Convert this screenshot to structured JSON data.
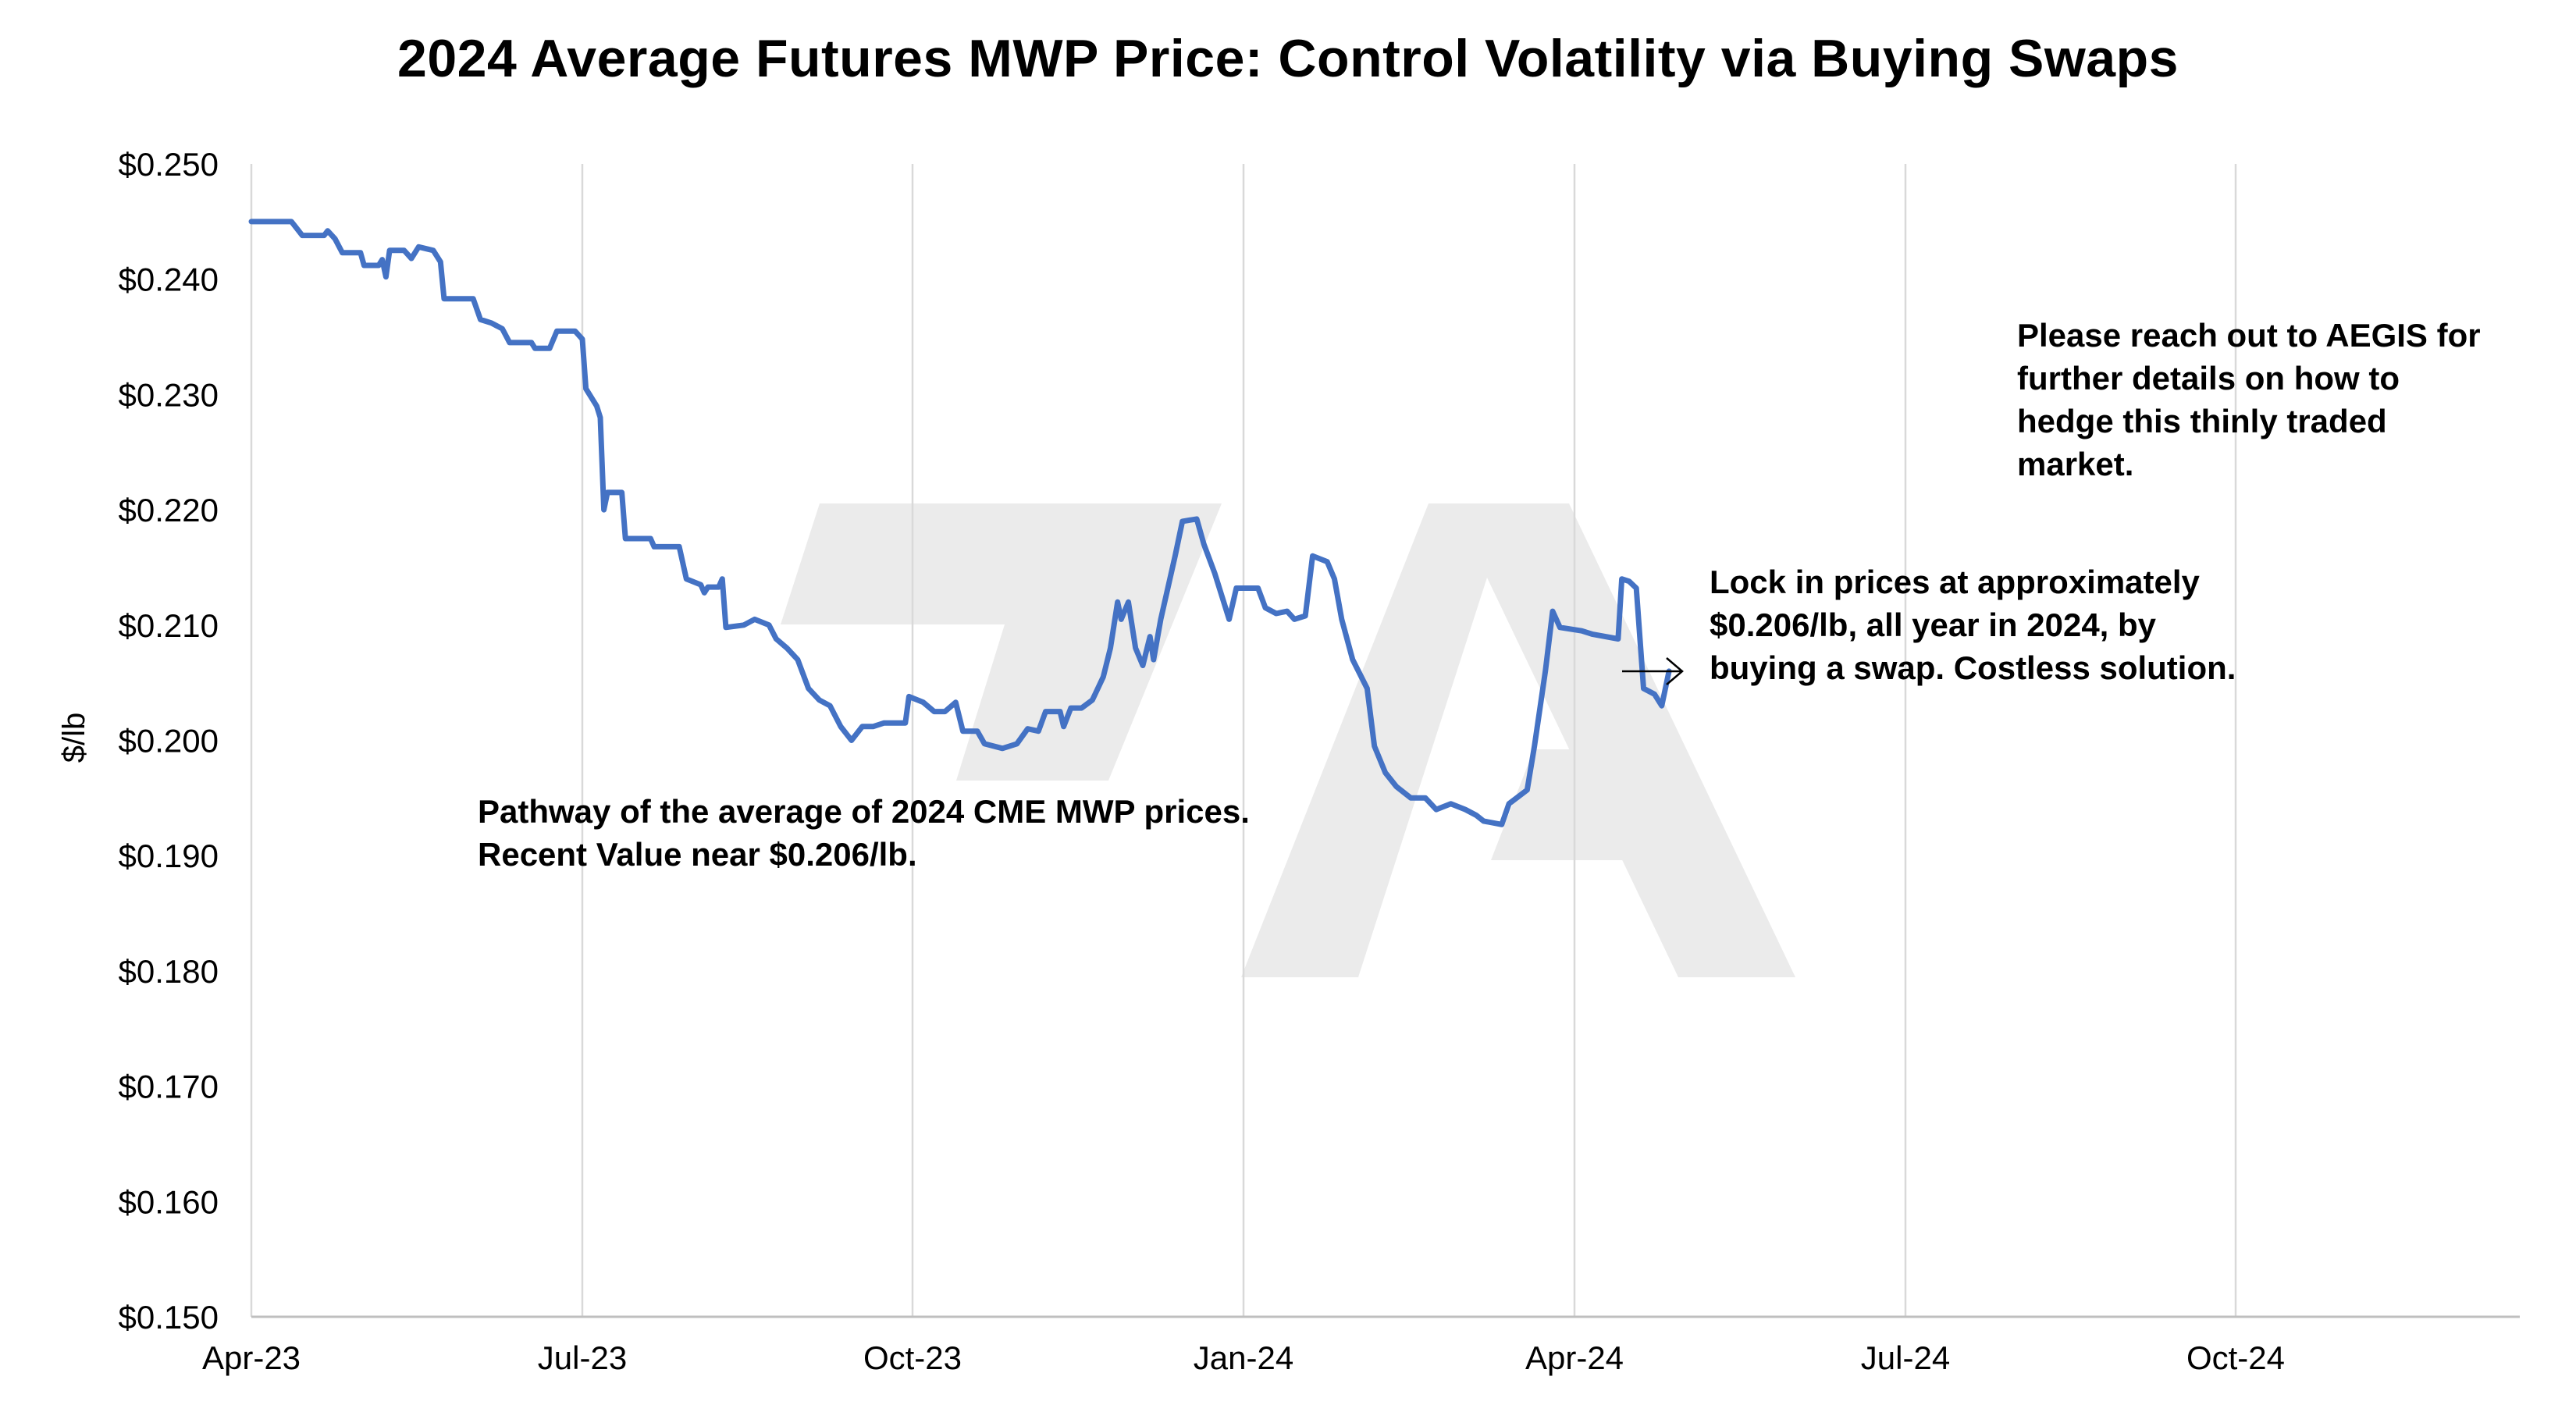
{
  "chart_data": {
    "type": "line",
    "title": "2024 Average Futures MWP Price: Control Volatility via Buying Swaps",
    "xlabel": "",
    "ylabel": "$/lb",
    "x_ticks": [
      "Apr-23",
      "Jul-23",
      "Oct-23",
      "Jan-24",
      "Apr-24",
      "Jul-24",
      "Oct-24"
    ],
    "x_range": [
      "2023-04-01",
      "2024-12-31"
    ],
    "y_ticks": [
      "$0.150",
      "$0.160",
      "$0.170",
      "$0.180",
      "$0.190",
      "$0.200",
      "$0.210",
      "$0.220",
      "$0.230",
      "$0.240",
      "$0.250"
    ],
    "ylim": [
      0.15,
      0.25
    ],
    "grid": "vertical",
    "legend": "none",
    "series": [
      {
        "color": "#4472C4",
        "points": [
          [
            "2023-04-01",
            0.245
          ],
          [
            "2023-04-12",
            0.245
          ],
          [
            "2023-04-15",
            0.2438
          ],
          [
            "2023-04-21",
            0.2438
          ],
          [
            "2023-04-22",
            0.2442
          ],
          [
            "2023-04-24",
            0.2435
          ],
          [
            "2023-04-26",
            0.2423
          ],
          [
            "2023-05-01",
            0.2423
          ],
          [
            "2023-05-02",
            0.2412
          ],
          [
            "2023-05-06",
            0.2412
          ],
          [
            "2023-05-07",
            0.2417
          ],
          [
            "2023-05-08",
            0.2402
          ],
          [
            "2023-05-09",
            0.2425
          ],
          [
            "2023-05-13",
            0.2425
          ],
          [
            "2023-05-15",
            0.2418
          ],
          [
            "2023-05-17",
            0.2428
          ],
          [
            "2023-05-21",
            0.2425
          ],
          [
            "2023-05-23",
            0.2415
          ],
          [
            "2023-05-24",
            0.2383
          ],
          [
            "2023-06-01",
            0.2383
          ],
          [
            "2023-06-03",
            0.2365
          ],
          [
            "2023-06-06",
            0.2362
          ],
          [
            "2023-06-09",
            0.2357
          ],
          [
            "2023-06-11",
            0.2345
          ],
          [
            "2023-06-17",
            0.2345
          ],
          [
            "2023-06-18",
            0.234
          ],
          [
            "2023-06-22",
            0.234
          ],
          [
            "2023-06-24",
            0.2355
          ],
          [
            "2023-06-29",
            0.2355
          ],
          [
            "2023-07-01",
            0.2348
          ],
          [
            "2023-07-02",
            0.2305
          ],
          [
            "2023-07-05",
            0.229
          ],
          [
            "2023-07-06",
            0.228
          ],
          [
            "2023-07-07",
            0.22
          ],
          [
            "2023-07-08",
            0.2215
          ],
          [
            "2023-07-12",
            0.2215
          ],
          [
            "2023-07-13",
            0.2175
          ],
          [
            "2023-07-20",
            0.2175
          ],
          [
            "2023-07-21",
            0.2168
          ],
          [
            "2023-07-28",
            0.2168
          ],
          [
            "2023-07-30",
            0.214
          ],
          [
            "2023-08-03",
            0.2135
          ],
          [
            "2023-08-04",
            0.2128
          ],
          [
            "2023-08-05",
            0.2133
          ],
          [
            "2023-08-08",
            0.2133
          ],
          [
            "2023-08-09",
            0.214
          ],
          [
            "2023-08-10",
            0.2098
          ],
          [
            "2023-08-15",
            0.21
          ],
          [
            "2023-08-18",
            0.2105
          ],
          [
            "2023-08-22",
            0.21
          ],
          [
            "2023-08-24",
            0.2088
          ],
          [
            "2023-08-27",
            0.208
          ],
          [
            "2023-08-30",
            0.207
          ],
          [
            "2023-09-02",
            0.2045
          ],
          [
            "2023-09-05",
            0.2035
          ],
          [
            "2023-09-08",
            0.203
          ],
          [
            "2023-09-11",
            0.2012
          ],
          [
            "2023-09-14",
            0.2
          ],
          [
            "2023-09-17",
            0.2012
          ],
          [
            "2023-09-20",
            0.2012
          ],
          [
            "2023-09-23",
            0.2015
          ],
          [
            "2023-09-27",
            0.2015
          ],
          [
            "2023-09-29",
            0.2015
          ],
          [
            "2023-09-30",
            0.2038
          ],
          [
            "2023-10-04",
            0.2033
          ],
          [
            "2023-10-07",
            0.2025
          ],
          [
            "2023-10-10",
            0.2025
          ],
          [
            "2023-10-13",
            0.2033
          ],
          [
            "2023-10-15",
            0.2008
          ],
          [
            "2023-10-19",
            0.2008
          ],
          [
            "2023-10-21",
            0.1997
          ],
          [
            "2023-10-26",
            0.1993
          ],
          [
            "2023-10-30",
            0.1997
          ],
          [
            "2023-11-02",
            0.201
          ],
          [
            "2023-11-05",
            0.2008
          ],
          [
            "2023-11-07",
            0.2025
          ],
          [
            "2023-11-11",
            0.2025
          ],
          [
            "2023-11-12",
            0.2012
          ],
          [
            "2023-11-14",
            0.2028
          ],
          [
            "2023-11-17",
            0.2028
          ],
          [
            "2023-11-20",
            0.2035
          ],
          [
            "2023-11-23",
            0.2055
          ],
          [
            "2023-11-25",
            0.208
          ],
          [
            "2023-11-27",
            0.212
          ],
          [
            "2023-11-28",
            0.2105
          ],
          [
            "2023-11-30",
            0.212
          ],
          [
            "2023-12-02",
            0.208
          ],
          [
            "2023-12-04",
            0.2065
          ],
          [
            "2023-12-06",
            0.209
          ],
          [
            "2023-12-07",
            0.207
          ],
          [
            "2023-12-09",
            0.2105
          ],
          [
            "2023-12-13",
            0.216
          ],
          [
            "2023-12-15",
            0.219
          ],
          [
            "2023-12-19",
            0.2192
          ],
          [
            "2023-12-21",
            0.217
          ],
          [
            "2023-12-24",
            0.2145
          ],
          [
            "2023-12-28",
            0.2105
          ],
          [
            "2023-12-30",
            0.2132
          ],
          [
            "2024-01-05",
            0.2132
          ],
          [
            "2024-01-07",
            0.2115
          ],
          [
            "2024-01-10",
            0.211
          ],
          [
            "2024-01-13",
            0.2112
          ],
          [
            "2024-01-15",
            0.2105
          ],
          [
            "2024-01-18",
            0.2108
          ],
          [
            "2024-01-20",
            0.216
          ],
          [
            "2024-01-24",
            0.2155
          ],
          [
            "2024-01-26",
            0.214
          ],
          [
            "2024-01-28",
            0.2105
          ],
          [
            "2024-01-31",
            0.207
          ],
          [
            "2024-02-04",
            0.2045
          ],
          [
            "2024-02-06",
            0.1995
          ],
          [
            "2024-02-09",
            0.1972
          ],
          [
            "2024-02-12",
            0.196
          ],
          [
            "2024-02-16",
            0.195
          ],
          [
            "2024-02-20",
            0.195
          ],
          [
            "2024-02-23",
            0.194
          ],
          [
            "2024-02-27",
            0.1945
          ],
          [
            "2024-03-02",
            0.194
          ],
          [
            "2024-03-05",
            0.1935
          ],
          [
            "2024-03-07",
            0.193
          ],
          [
            "2024-03-12",
            0.1927
          ],
          [
            "2024-03-14",
            0.1945
          ],
          [
            "2024-03-19",
            0.1957
          ],
          [
            "2024-03-21",
            0.1995
          ],
          [
            "2024-03-24",
            0.206
          ],
          [
            "2024-03-26",
            0.2112
          ],
          [
            "2024-03-28",
            0.2098
          ],
          [
            "2024-04-03",
            0.2095
          ],
          [
            "2024-04-06",
            0.2092
          ],
          [
            "2024-04-13",
            0.2088
          ],
          [
            "2024-04-14",
            0.214
          ],
          [
            "2024-04-16",
            0.2138
          ],
          [
            "2024-04-18",
            0.2132
          ],
          [
            "2024-04-20",
            0.2045
          ],
          [
            "2024-04-23",
            0.204
          ],
          [
            "2024-04-25",
            0.203
          ],
          [
            "2024-04-27",
            0.206
          ]
        ]
      }
    ]
  },
  "annotations": {
    "pathway": "Pathway of the average of 2024 CME MWP prices.  Recent Value near $0.206/lb.",
    "lock_in": "Lock in prices at approximately $0.206/lb, all year in 2024, by buying a swap. Costless solution.",
    "contact": "Please reach out to AEGIS for further details on how to hedge this thinly traded market."
  },
  "colors": {
    "line": "#4472C4",
    "grid": "#D9D9D9",
    "watermark": "#EBEBEB",
    "axis_text": "#000000"
  }
}
